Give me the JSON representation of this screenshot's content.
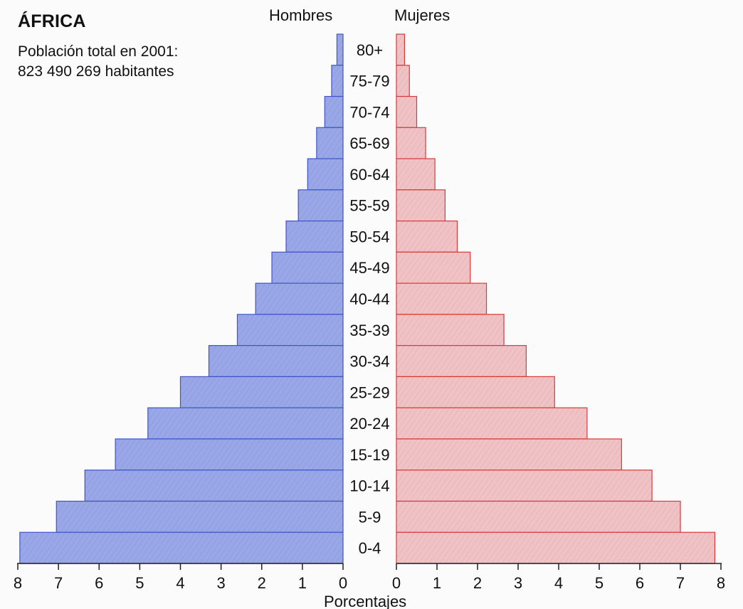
{
  "chart_data": {
    "type": "bar",
    "orientation": "horizontal",
    "layout": "population-pyramid",
    "title": "ÁFRICA",
    "subtitle_lines": [
      "Población total en 2001:",
      "823 490 269 habitantes"
    ],
    "left_label": "Hombres",
    "right_label": "Mujeres",
    "xlabel": "Porcentajes",
    "xlim": [
      0,
      8
    ],
    "x_ticks": [
      "0",
      "1",
      "2",
      "3",
      "4",
      "5",
      "6",
      "7",
      "8"
    ],
    "categories": [
      "80+",
      "75-79",
      "70-74",
      "65-69",
      "60-64",
      "55-59",
      "50-54",
      "45-49",
      "40-44",
      "35-39",
      "30-34",
      "25-29",
      "20-24",
      "15-19",
      "10-14",
      "5-9",
      "0-4"
    ],
    "series": [
      {
        "name": "Hombres",
        "color": "#99a6e5",
        "edge": "#3f55c9",
        "values": [
          0.15,
          0.28,
          0.45,
          0.65,
          0.87,
          1.1,
          1.4,
          1.75,
          2.15,
          2.6,
          3.3,
          4.0,
          4.8,
          5.6,
          6.35,
          7.05,
          7.95
        ]
      },
      {
        "name": "Mujeres",
        "color": "#eec1c4",
        "edge": "#d83a3a",
        "values": [
          0.2,
          0.32,
          0.5,
          0.72,
          0.95,
          1.2,
          1.5,
          1.82,
          2.22,
          2.65,
          3.2,
          3.9,
          4.7,
          5.55,
          6.3,
          7.0,
          7.85
        ]
      }
    ]
  }
}
